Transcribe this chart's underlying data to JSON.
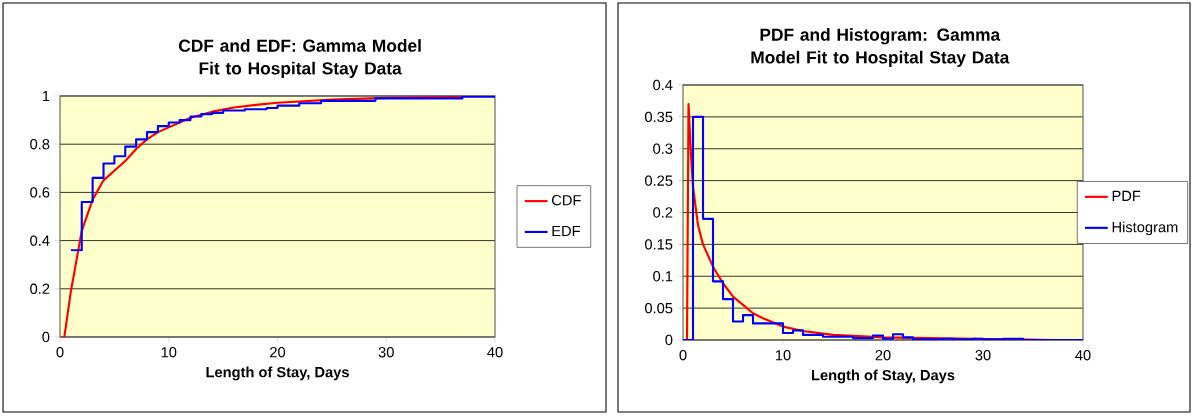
{
  "chart_data": [
    {
      "type": "line",
      "title": "CDF and EDF: Gamma Model Fit to Hospital Stay Data",
      "xlabel": "Length of Stay, Days",
      "xlim": [
        0,
        40
      ],
      "xticks": [
        0,
        10,
        20,
        30,
        40
      ],
      "ylim": [
        0,
        1
      ],
      "yticks": [
        0,
        0.2,
        0.4,
        0.6,
        0.8,
        1
      ],
      "grid": "y",
      "legend": "right",
      "marker": "none",
      "series": [
        {
          "name": "CDF",
          "type": "line",
          "color": "#ff0000",
          "x": [
            0.2,
            0.4,
            1,
            2,
            3,
            4,
            5,
            6,
            7,
            8,
            9,
            10,
            12,
            14,
            16,
            18,
            20,
            25,
            30,
            37
          ],
          "values": [
            0,
            0,
            0.19,
            0.44,
            0.57,
            0.65,
            0.69,
            0.73,
            0.78,
            0.82,
            0.85,
            0.87,
            0.91,
            0.935,
            0.952,
            0.963,
            0.972,
            0.985,
            0.992,
            0.997
          ]
        },
        {
          "name": "EDF",
          "type": "step",
          "color": "#0000ff",
          "x": [
            1,
            2,
            3,
            4,
            5,
            6,
            7,
            8,
            9,
            10,
            11,
            12,
            13,
            14,
            15,
            17,
            19,
            20,
            22,
            24,
            29,
            37,
            40
          ],
          "values": [
            0.36,
            0.56,
            0.66,
            0.72,
            0.75,
            0.79,
            0.82,
            0.85,
            0.875,
            0.89,
            0.9,
            0.915,
            0.925,
            0.93,
            0.94,
            0.945,
            0.95,
            0.96,
            0.97,
            0.98,
            0.99,
            0.997,
            0.997
          ]
        }
      ]
    },
    {
      "type": "line",
      "title": "PDF and Histogram: Gamma Model Fit to Hospital Stay Data",
      "xlabel": "Length of Stay, Days",
      "xlim": [
        0,
        40
      ],
      "xticks": [
        0,
        10,
        20,
        30,
        40
      ],
      "ylim": [
        0,
        0.4
      ],
      "yticks": [
        0,
        0.05,
        0.1,
        0.15,
        0.2,
        0.25,
        0.3,
        0.35,
        0.4
      ],
      "grid": "y",
      "legend": "right",
      "marker": "none",
      "series": [
        {
          "name": "PDF",
          "type": "line",
          "color": "#ff0000",
          "x": [
            0.4,
            0.55,
            0.8,
            1,
            1.5,
            2,
            3,
            4,
            5,
            6,
            7,
            8,
            10,
            12,
            15,
            20,
            25,
            30,
            37
          ],
          "values": [
            0,
            0.37,
            0.29,
            0.24,
            0.18,
            0.15,
            0.115,
            0.089,
            0.068,
            0.055,
            0.042,
            0.034,
            0.021,
            0.014,
            0.008,
            0.004,
            null,
            null,
            0
          ]
        },
        {
          "name": "Histogram",
          "type": "step",
          "color": "#0000ff",
          "x": [
            0,
            1,
            2,
            3,
            4,
            5,
            6,
            7,
            10,
            11,
            12,
            14,
            17,
            19,
            20,
            21,
            22,
            23,
            26,
            27,
            29,
            30,
            32,
            34,
            40
          ],
          "values": [
            0,
            0.35,
            0.19,
            0.092,
            0.064,
            0.029,
            0.039,
            0.026,
            0.011,
            0.015,
            0.008,
            0.005,
            0.003,
            0.007,
            0.002,
            0.009,
            0.004,
            0.001,
            0.002,
            0.001,
            0.002,
            0.001,
            0.002,
            0,
            0
          ]
        }
      ]
    }
  ]
}
